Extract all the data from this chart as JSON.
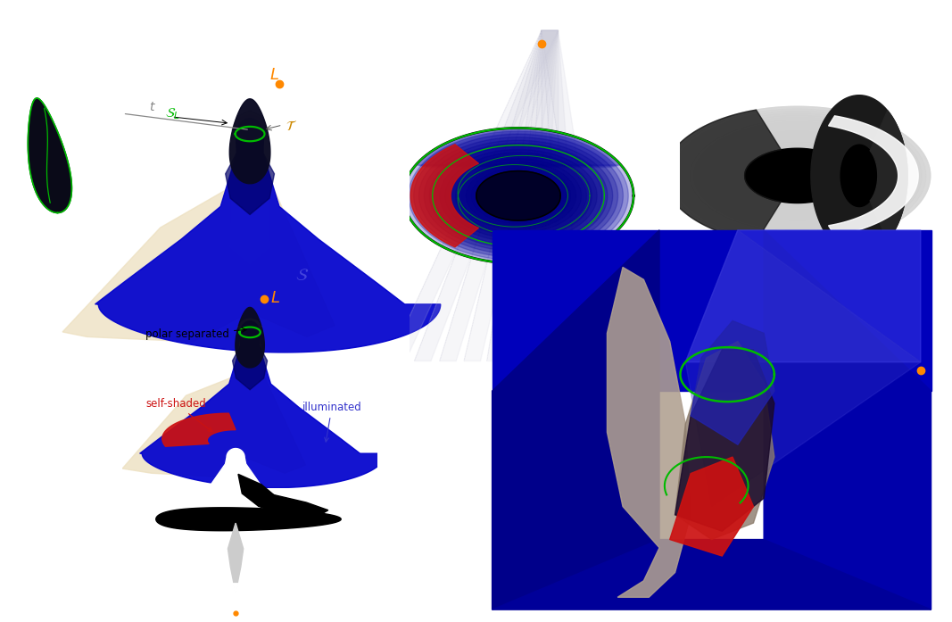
{
  "figure_size": [
    10.67,
    6.97
  ],
  "dpi": 100,
  "background": "#ffffff",
  "colors": {
    "blue_surface": "#0000cc",
    "blue_dark": "#000088",
    "blue_medium": "#2222aa",
    "beige": "#ede0c0",
    "beige_light": "#f5edd8",
    "green_curve": "#00bb00",
    "orange_point": "#ff8800",
    "red_region": "#cc1111",
    "black_bg": "#000000",
    "white": "#ffffff",
    "dark_blob": "#0a0a22",
    "pale_surface": "#d0d0cc",
    "blue_box": "#0000cc",
    "gray_surface": "#b0a090",
    "gray_surface2": "#8a7a6a",
    "dark_purple": "#1a0a33"
  }
}
